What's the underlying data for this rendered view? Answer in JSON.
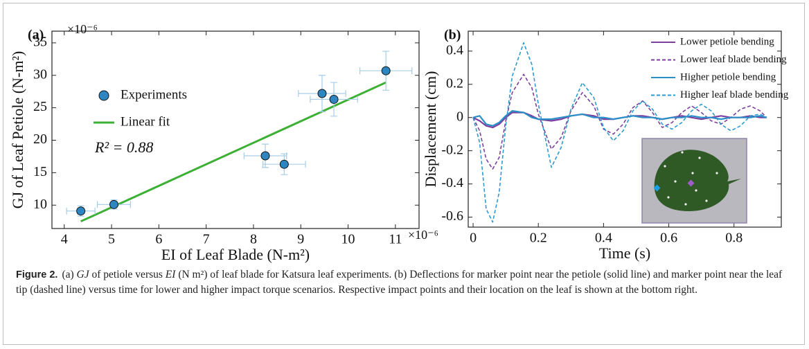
{
  "chart_data": [
    {
      "type": "scatter",
      "panel_label": "(a)",
      "x_label": "EI of Leaf Blade (N-m²)",
      "y_label": "GJ of Leaf Petiole (N-m²)",
      "x_offset_label": "×10⁻⁶",
      "y_offset_label": "×10⁻⁶",
      "annotation": "R² = 0.88",
      "xlim": [
        3.74,
        11.5
      ],
      "ylim": [
        6.4,
        36.8
      ],
      "xticks": [
        4,
        5,
        6,
        7,
        8,
        9,
        10,
        11
      ],
      "yticks": [
        10,
        15,
        20,
        25,
        30,
        35
      ],
      "series": [
        {
          "name": "Experiments",
          "color": "#2e86c1",
          "error_color": "#a6cde6",
          "x": [
            4.35,
            5.05,
            8.25,
            8.65,
            9.45,
            9.7,
            10.8
          ],
          "values": [
            9.1,
            10.1,
            17.6,
            16.3,
            27.2,
            26.3,
            30.7
          ],
          "x_err": [
            0.3,
            0.35,
            0.45,
            0.45,
            0.5,
            0.5,
            0.55
          ],
          "y_err": [
            0.8,
            0.7,
            1.8,
            1.6,
            2.8,
            2.6,
            3.0
          ]
        },
        {
          "name": "Linear fit",
          "type": "line",
          "color": "#3cb034",
          "x": [
            4.35,
            10.8
          ],
          "values": [
            7.5,
            28.9
          ]
        }
      ]
    },
    {
      "type": "line",
      "panel_label": "(b)",
      "x_label": "Time (s)",
      "y_label": "Displacement (cm)",
      "xlim": [
        -0.015,
        0.945
      ],
      "ylim": [
        -0.66,
        0.52
      ],
      "xticks": [
        0,
        0.2,
        0.4,
        0.6,
        0.8
      ],
      "yticks": [
        -0.6,
        -0.4,
        -0.2,
        0,
        0.2,
        0.4
      ],
      "x": [
        0,
        0.02,
        0.04,
        0.06,
        0.08,
        0.1,
        0.12,
        0.155,
        0.18,
        0.2,
        0.24,
        0.27,
        0.3,
        0.335,
        0.37,
        0.4,
        0.43,
        0.46,
        0.49,
        0.52,
        0.55,
        0.58,
        0.61,
        0.64,
        0.67,
        0.7,
        0.73,
        0.76,
        0.79,
        0.82,
        0.85,
        0.88,
        0.9
      ],
      "series": [
        {
          "name": "Lower petiole bending",
          "color": "#7b3f9e",
          "dashed": false,
          "values": [
            0,
            -0.02,
            -0.05,
            -0.06,
            -0.04,
            0,
            0.03,
            0.03,
            0.01,
            -0.01,
            -0.02,
            -0.01,
            0.01,
            0.02,
            0.01,
            -0.01,
            -0.01,
            0,
            0.01,
            0.01,
            0,
            -0.01,
            0,
            0.01,
            0,
            -0.01,
            0,
            0.01,
            0,
            0,
            0.01,
            0,
            0
          ]
        },
        {
          "name": "Lower leaf blade bending",
          "color": "#7b3f9e",
          "dashed": true,
          "values": [
            0,
            -0.08,
            -0.25,
            -0.31,
            -0.24,
            -0.02,
            0.15,
            0.26,
            0.18,
            0.02,
            -0.19,
            -0.12,
            0.04,
            0.15,
            0.07,
            -0.07,
            -0.1,
            -0.04,
            0.06,
            0.1,
            0.03,
            -0.06,
            -0.03,
            0.03,
            0.07,
            0.03,
            -0.02,
            -0.04,
            0,
            0.05,
            0.07,
            0.04,
            0
          ]
        },
        {
          "name": "Higher petiole bending",
          "color": "#2a8fc7",
          "dashed": false,
          "values": [
            0,
            0.01,
            -0.04,
            -0.05,
            -0.03,
            0.01,
            0.04,
            0.03,
            0,
            -0.01,
            -0.01,
            0,
            0.01,
            0.02,
            0,
            0,
            -0.01,
            0,
            0.01,
            0,
            0,
            -0.01,
            0,
            0,
            0.01,
            0,
            0,
            -0.01,
            0,
            0,
            0,
            0.01,
            0
          ]
        },
        {
          "name": "Higher leaf blade bending",
          "color": "#2a9bd0",
          "dashed": true,
          "values": [
            0,
            -0.15,
            -0.55,
            -0.63,
            -0.45,
            -0.05,
            0.25,
            0.45,
            0.32,
            0.08,
            -0.3,
            -0.18,
            0.05,
            0.21,
            0.12,
            -0.06,
            -0.14,
            -0.08,
            0.04,
            0.1,
            0.05,
            -0.04,
            -0.07,
            -0.03,
            0.04,
            0.08,
            0.04,
            -0.04,
            -0.08,
            -0.05,
            0.01,
            0.02,
            0
          ]
        }
      ]
    }
  ],
  "caption": {
    "label": "Figure 2.",
    "segments": [
      {
        "text": "(a) "
      },
      {
        "text": "GJ",
        "italic": true
      },
      {
        "text": " of petiole versus "
      },
      {
        "text": "EI",
        "italic": true
      },
      {
        "text": " (N m²) of leaf blade for Katsura leaf experiments. (b) Deflections for marker point near the petiole (solid line) and marker point near the leaf tip (dashed line) versus time for lower and higher impact torque scenarios. Respective impact points and their location on the leaf is shown at the bottom right."
      }
    ]
  }
}
